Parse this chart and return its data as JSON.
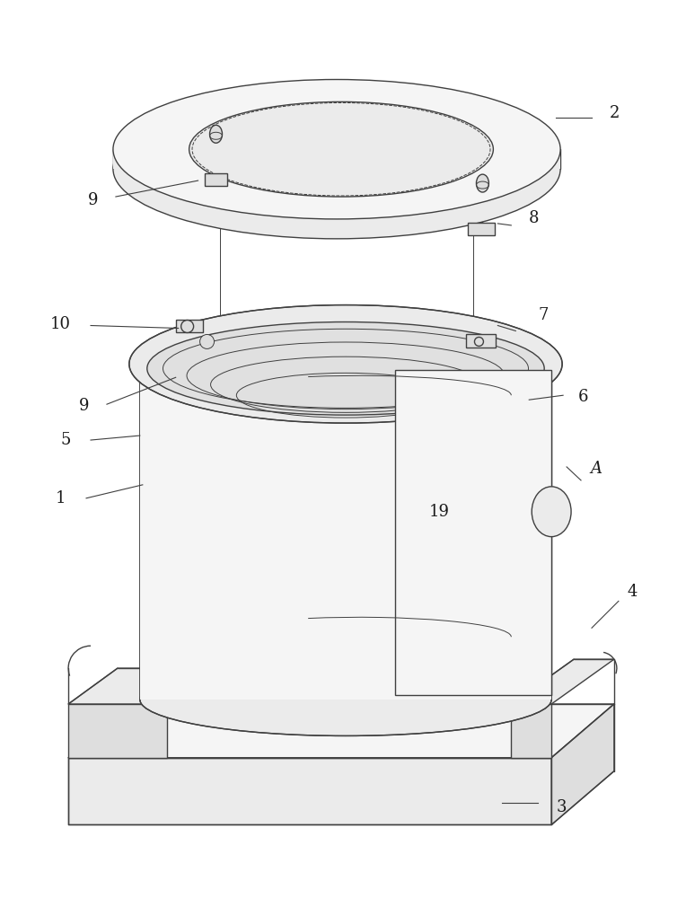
{
  "bg_color": "#ffffff",
  "line_color": "#404040",
  "lw": 1.0,
  "lw_thin": 0.7,
  "lw_thick": 1.3,
  "fig_width": 7.64,
  "fig_height": 10.0,
  "label_fs": 13,
  "label_color": "#1a1a1a",
  "face_light": "#f5f5f5",
  "face_mid": "#ebebeb",
  "face_dark": "#dedede",
  "face_inner": "#e0e0e0",
  "face_base": "#f0f0f0"
}
